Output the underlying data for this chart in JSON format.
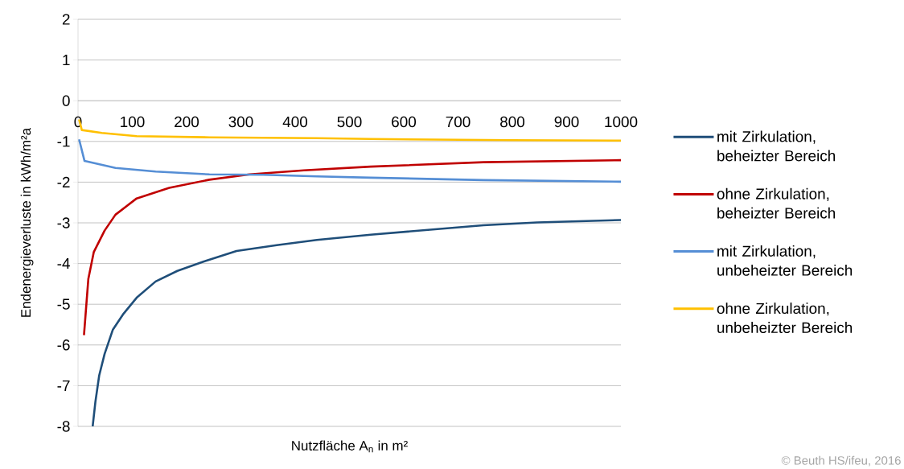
{
  "chart_data": {
    "type": "line",
    "xlabel": "Nutzfläche A$_{n}$ in m²",
    "ylabel": "Endenergieverluste  in kWh/m²a",
    "xlim": [
      0,
      1000
    ],
    "ylim": [
      -8,
      2
    ],
    "xticks": [
      0,
      100,
      200,
      300,
      400,
      500,
      600,
      700,
      800,
      900,
      1000
    ],
    "yticks": [
      -8,
      -7,
      -6,
      -5,
      -4,
      -3,
      -2,
      -1,
      0,
      1,
      2
    ],
    "grid": "y",
    "legend": "right",
    "marker": "none",
    "line_style": "solid",
    "annotations": [
      "© Beuth HS/ifeu, 2016"
    ],
    "series": [
      {
        "name": "mit Zirkulation, beheizter Bereich",
        "color": "#1f4e79",
        "x": [
          27,
          32,
          39,
          49,
          64,
          84,
          108,
          143,
          183,
          232,
          292,
          366,
          440,
          539,
          747,
          846,
          1000
        ],
        "values": [
          -8,
          -7.4,
          -6.75,
          -6.22,
          -5.63,
          -5.23,
          -4.84,
          -4.44,
          -4.18,
          -3.95,
          -3.69,
          -3.55,
          -3.42,
          -3.29,
          -3.06,
          -2.99,
          -2.93
        ]
      },
      {
        "name": "ohne Zirkulation, beheizter Bereich",
        "color": "#c00000",
        "x": [
          11,
          19,
          29,
          49,
          69,
          108,
          168,
          242,
          316,
          416,
          539,
          747,
          1000
        ],
        "values": [
          -5.76,
          -4.38,
          -3.72,
          -3.19,
          -2.8,
          -2.4,
          -2.14,
          -1.94,
          -1.81,
          -1.71,
          -1.62,
          -1.51,
          -1.46
        ]
      },
      {
        "name": "mit Zirkulation, unbeheizter Bereich",
        "color": "#558ed5",
        "x": [
          2,
          12,
          69,
          143,
          242,
          341,
          440,
          539,
          747,
          1000
        ],
        "values": [
          -0.95,
          -1.48,
          -1.65,
          -1.74,
          -1.81,
          -1.82,
          -1.86,
          -1.89,
          -1.95,
          -1.99
        ]
      },
      {
        "name": "ohne Zirkulation, unbeheizter Bereich",
        "color": "#ffc000",
        "x": [
          2,
          7,
          44,
          108,
          242,
          440,
          539,
          797,
          1000
        ],
        "values": [
          -0.46,
          -0.72,
          -0.79,
          -0.87,
          -0.9,
          -0.92,
          -0.94,
          -0.97,
          -0.98
        ]
      }
    ]
  }
}
